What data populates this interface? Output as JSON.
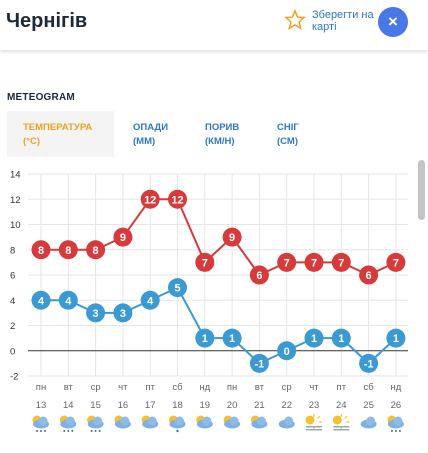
{
  "header": {
    "city": "Чернігів",
    "save_line1": "Зберегти на",
    "save_line2": "карті",
    "close_symbol": "×",
    "star_color": "#f0a020",
    "close_color": "#4a77e8"
  },
  "meteogram": {
    "title": "METEOGRAM",
    "tabs": [
      {
        "line1": "ТЕМПЕРАТУРА",
        "line2": "(°C)",
        "active": true
      },
      {
        "line1": "ОПАДИ",
        "line2": "(ММ)",
        "active": false
      },
      {
        "line1": "ПОРИВ",
        "line2": "(КМ/Н)",
        "active": false
      },
      {
        "line1": "СНІГ",
        "line2": "(СМ)",
        "active": false
      }
    ]
  },
  "chart_data": {
    "type": "line",
    "yticks": [
      14,
      12,
      10,
      8,
      6,
      4,
      2,
      0,
      -2
    ],
    "ylim": [
      -2,
      14
    ],
    "categories_day": [
      "пн",
      "вт",
      "ср",
      "чт",
      "пт",
      "сб",
      "нд",
      "пн",
      "вт",
      "ср",
      "чт",
      "пт",
      "сб",
      "нд"
    ],
    "categories_date": [
      "13",
      "14",
      "15",
      "16",
      "17",
      "18",
      "19",
      "20",
      "21",
      "22",
      "23",
      "24",
      "25",
      "26"
    ],
    "series": [
      {
        "color": "#d63a3a",
        "values": [
          8,
          8,
          8,
          9,
          12,
          12,
          7,
          9,
          6,
          7,
          7,
          7,
          6,
          7
        ]
      },
      {
        "color": "#3a9ad1",
        "values": [
          4,
          4,
          3,
          3,
          4,
          5,
          1,
          1,
          -1,
          0,
          1,
          1,
          -1,
          1
        ]
      }
    ],
    "weather_icons": [
      "cloud-snow-icon",
      "cloud-snow-icon",
      "cloud-snow-icon",
      "partly-cloudy-icon",
      "partly-cloudy-icon",
      "cloud-rain-icon",
      "partly-cloudy-icon",
      "partly-cloudy-icon",
      "partly-cloudy-icon",
      "cloud-icon",
      "sun-haze-icon",
      "sun-haze-icon",
      "cloud-icon",
      "cloud-snow-icon"
    ]
  }
}
